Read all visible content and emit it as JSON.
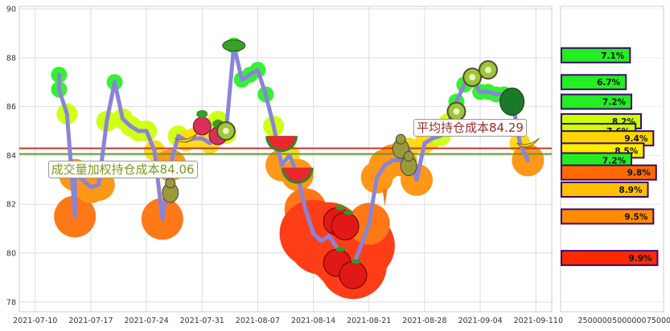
{
  "chart_data": {
    "type": "line",
    "x_ticks": [
      "2021-07-10",
      "2021-07-17",
      "2021-07-24",
      "2021-07-31",
      "2021-08-07",
      "2021-08-14",
      "2021-08-21",
      "2021-08-28",
      "2021-09-04",
      "2021-09-11"
    ],
    "y_ticks": [
      78,
      80,
      82,
      84,
      86,
      88,
      90
    ],
    "ylim": [
      77.6,
      90.1
    ],
    "xlim": [
      "2021-07-08",
      "2021-09-13"
    ],
    "grid": true,
    "series": [
      {
        "values": [
          [
            "2021-07-13",
            87.3
          ],
          [
            "2021-07-13",
            86.7
          ],
          [
            "2021-07-14",
            85.7
          ],
          [
            "2021-07-15",
            81.5
          ],
          [
            "2021-07-15",
            83.2
          ],
          [
            "2021-07-16",
            83.0
          ],
          [
            "2021-07-17",
            82.7
          ],
          [
            "2021-07-18",
            82.8
          ],
          [
            "2021-07-19",
            85.4
          ],
          [
            "2021-07-20",
            87.0
          ],
          [
            "2021-07-21",
            85.5
          ],
          [
            "2021-07-22",
            85.2
          ],
          [
            "2021-07-23",
            85.0
          ],
          [
            "2021-07-24",
            85.0
          ],
          [
            "2021-07-25",
            84.2
          ],
          [
            "2021-07-26",
            81.4
          ],
          [
            "2021-07-27",
            83.6
          ],
          [
            "2021-07-28",
            84.8
          ],
          [
            "2021-07-29",
            84.6
          ],
          [
            "2021-07-30",
            84.7
          ],
          [
            "2021-07-31",
            84.7
          ],
          [
            "2021-08-01",
            84.5
          ],
          [
            "2021-08-02",
            85.4
          ],
          [
            "2021-08-03",
            84.9
          ],
          [
            "2021-08-04",
            88.5
          ],
          [
            "2021-08-05",
            87.1
          ],
          [
            "2021-08-06",
            87.3
          ],
          [
            "2021-08-07",
            87.5
          ],
          [
            "2021-08-08",
            86.5
          ],
          [
            "2021-08-09",
            85.2
          ],
          [
            "2021-08-10",
            83.6
          ],
          [
            "2021-08-11",
            84.0
          ],
          [
            "2021-08-12",
            83.2
          ],
          [
            "2021-08-13",
            81.8
          ],
          [
            "2021-08-14",
            80.8
          ],
          [
            "2021-08-15",
            80.5
          ],
          [
            "2021-08-16",
            80.7
          ],
          [
            "2021-08-17",
            80.2
          ],
          [
            "2021-08-18",
            79.9
          ],
          [
            "2021-08-19",
            79.5
          ],
          [
            "2021-08-20",
            80.3
          ],
          [
            "2021-08-21",
            81.2
          ],
          [
            "2021-08-22",
            83.1
          ],
          [
            "2021-08-23",
            83.6
          ],
          [
            "2021-08-24",
            83.8
          ],
          [
            "2021-08-25",
            83.8
          ],
          [
            "2021-08-26",
            84.3
          ],
          [
            "2021-08-27",
            83.0
          ],
          [
            "2021-08-28",
            84.5
          ],
          [
            "2021-08-29",
            84.7
          ],
          [
            "2021-08-30",
            84.8
          ],
          [
            "2021-08-31",
            85.3
          ],
          [
            "2021-09-01",
            86.2
          ],
          [
            "2021-09-02",
            86.9
          ],
          [
            "2021-09-03",
            87.1
          ],
          [
            "2021-09-04",
            86.6
          ],
          [
            "2021-09-05",
            86.6
          ],
          [
            "2021-09-06",
            86.5
          ],
          [
            "2021-09-07",
            86.5
          ],
          [
            "2021-09-08",
            86.3
          ],
          [
            "2021-09-09",
            84.5
          ],
          [
            "2021-09-10",
            83.8
          ]
        ]
      }
    ],
    "reference_lines": [
      {
        "label": "平均持仓成本84.29",
        "value": 84.29,
        "color": "#c0392b"
      },
      {
        "label": "成交量加权持仓成本84.06",
        "value": 84.06,
        "color": "#6a9a2a"
      }
    ],
    "side_bars": {
      "x_ticks": [
        "0",
        "2500000",
        "5000000",
        "7500000"
      ],
      "xlim": [
        0,
        7500000
      ],
      "bars": [
        {
          "price": 88.1,
          "volume": 5000000,
          "label": "7.1%",
          "color": "#22ee22"
        },
        {
          "price": 87.0,
          "volume": 4700000,
          "label": "6.7%",
          "color": "#22ee22"
        },
        {
          "price": 86.2,
          "volume": 5100000,
          "label": "7.2%",
          "color": "#22ee22"
        },
        {
          "price": 85.4,
          "volume": 5800000,
          "label": "8.2%",
          "color": "#ccff00"
        },
        {
          "price": 85.0,
          "volume": 5400000,
          "label": "7.6%",
          "color": "#ccff00"
        },
        {
          "price": 84.7,
          "volume": 6700000,
          "label": "9.4%",
          "color": "#ffd600"
        },
        {
          "price": 84.2,
          "volume": 6000000,
          "label": "8.5%",
          "color": "#ffee00"
        },
        {
          "price": 83.8,
          "volume": 5100000,
          "label": "7.2%",
          "color": "#22ee22"
        },
        {
          "price": 83.3,
          "volume": 6900000,
          "label": "9.8%",
          "color": "#ff6a00"
        },
        {
          "price": 82.6,
          "volume": 6300000,
          "label": "8.9%",
          "color": "#ffc000"
        },
        {
          "price": 81.5,
          "volume": 6700000,
          "label": "9.5%",
          "color": "#ff8c00"
        },
        {
          "price": 79.8,
          "volume": 7000000,
          "label": "9.9%",
          "color": "#ff2a00"
        }
      ]
    }
  }
}
